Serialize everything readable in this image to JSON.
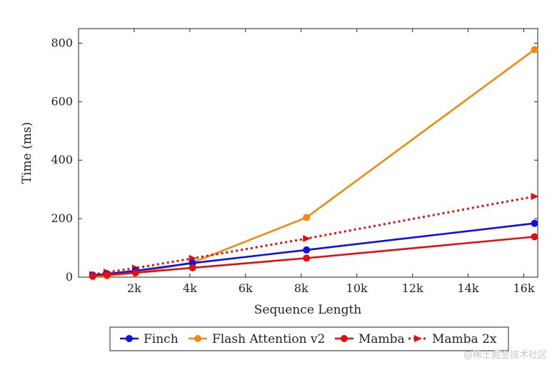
{
  "chart_data": {
    "type": "line",
    "xlabel": "Sequence Length",
    "ylabel": "Time (ms)",
    "xlim": [
      0,
      16500
    ],
    "ylim": [
      0,
      850
    ],
    "x_ticks": [
      2000,
      4000,
      6000,
      8000,
      10000,
      12000,
      14000,
      16000
    ],
    "x_tick_labels": [
      "2k",
      "4k",
      "6k",
      "8k",
      "10k",
      "12k",
      "14k",
      "16k"
    ],
    "y_ticks": [
      0,
      200,
      400,
      600,
      800
    ],
    "y_tick_labels": [
      "0",
      "200",
      "400",
      "600",
      "800"
    ],
    "legend_position": "bottom",
    "series": [
      {
        "name": "Finch",
        "color": "#1010e0",
        "style": "solid",
        "marker": "circle",
        "x": [
          512,
          1024,
          2048,
          4096,
          8192,
          16384
        ],
        "y": [
          7,
          11,
          22,
          48,
          93,
          184
        ]
      },
      {
        "name": "Flash Attention v2",
        "color": "#f08a10",
        "style": "solid",
        "marker": "circle",
        "x": [
          512,
          1024,
          2048,
          4096,
          8192,
          16384
        ],
        "y": [
          2,
          4,
          15,
          50,
          204,
          778
        ]
      },
      {
        "name": "Mamba",
        "color": "#e01010",
        "style": "solid",
        "marker": "circle",
        "x": [
          512,
          1024,
          2048,
          4096,
          8192,
          16384
        ],
        "y": [
          4,
          8,
          15,
          32,
          65,
          138
        ]
      },
      {
        "name": "Mamba 2x",
        "color": "#e01010",
        "style": "dotted",
        "marker": "triangle",
        "x": [
          512,
          1024,
          2048,
          4096,
          8192,
          16384
        ],
        "y": [
          9,
          17,
          31,
          64,
          132,
          276
        ]
      }
    ]
  },
  "watermark": "@稀土掘金技术社区"
}
